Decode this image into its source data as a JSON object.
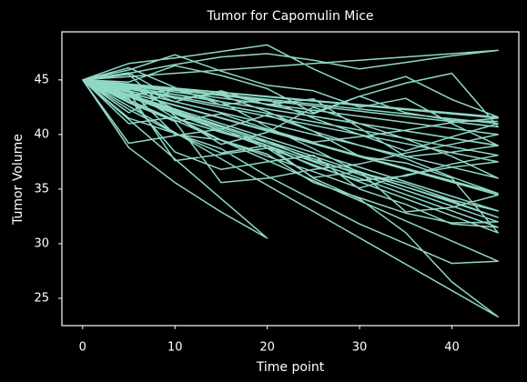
{
  "chart_data": {
    "type": "line",
    "title": "Tumor for Capomulin Mice",
    "xlabel": "Time point",
    "ylabel": "Tumor Volume",
    "x": [
      0,
      5,
      10,
      15,
      20,
      25,
      30,
      35,
      40,
      45,
      0,
      5,
      10,
      15,
      20,
      25,
      30,
      35,
      40,
      45,
      0,
      5,
      10,
      15,
      20,
      25,
      30,
      35,
      40,
      45,
      0,
      5,
      10,
      15,
      20,
      0,
      5,
      10,
      15,
      20,
      25,
      30,
      35,
      40,
      45,
      0,
      5,
      10,
      15,
      20,
      25,
      30,
      35,
      40,
      45,
      0,
      5,
      10,
      15,
      20,
      25,
      30,
      35,
      40,
      45,
      0,
      5,
      10,
      15,
      20,
      25,
      30,
      35,
      40,
      45,
      0,
      5,
      10,
      15,
      20,
      25,
      30,
      35,
      40,
      45,
      0,
      5,
      10,
      15,
      20,
      25,
      30,
      35,
      40,
      45,
      0,
      5,
      10,
      15,
      20,
      25,
      30,
      35,
      40,
      45,
      0,
      5,
      10,
      15,
      20,
      25,
      30,
      35,
      40,
      45,
      0,
      5,
      10,
      15,
      20,
      25,
      30,
      35,
      40,
      45,
      0,
      5,
      10,
      15,
      20,
      25,
      30,
      35,
      40,
      45,
      0,
      5,
      10,
      15,
      20,
      25,
      30,
      35,
      40,
      45,
      0,
      5,
      10,
      15,
      20,
      25,
      30,
      35,
      40,
      45,
      0,
      5,
      10,
      15,
      20,
      25,
      30,
      35,
      40,
      45,
      0,
      5,
      10,
      15,
      20,
      25,
      30,
      35,
      40,
      45,
      0,
      5,
      10,
      15,
      20,
      25,
      30,
      35,
      40,
      45,
      0,
      5,
      10,
      15,
      20,
      25,
      30,
      35,
      40,
      45,
      0,
      5,
      10,
      15,
      20,
      25,
      30,
      35,
      40,
      45,
      0,
      5,
      10,
      15,
      20,
      25,
      30,
      35,
      40,
      45
    ],
    "series": [
      {
        "color": "#8fd8c6",
        "values": [
          45,
          45.65,
          43.27,
          43.78,
          42.73,
          43.26,
          40.6,
          37.97,
          38.38,
          38.98,
          45,
          45.6,
          46.4,
          47.1,
          47.4,
          46.8,
          46.0,
          46.6,
          47.2,
          47.7,
          45,
          43.88,
          37.61,
          38.18,
          38.75,
          36.07,
          36.62,
          32.92,
          33.33,
          34.46,
          45,
          38.8,
          35.6,
          32.9,
          30.5,
          45,
          44.0,
          41.5,
          40.2,
          39.0,
          36.0,
          34.1,
          31.0,
          26.5,
          23.3,
          45,
          42.3,
          40.1,
          38.7,
          36.2,
          34.0,
          31.8,
          30.0,
          28.2,
          28.4,
          45,
          46.5,
          47.0,
          47.6,
          48.2,
          46.0,
          44.1,
          45.3,
          43.2,
          41.6,
          45,
          44.5,
          42.3,
          40.2,
          39.4,
          37.6,
          36.5,
          35.2,
          33.9,
          32.4,
          45,
          43.0,
          41.2,
          41.9,
          40.5,
          39.3,
          39.8,
          40.4,
          41.1,
          41.5,
          45,
          41.5,
          40.1,
          38.3,
          39.0,
          37.1,
          35.8,
          36.2,
          37.3,
          38.1,
          45,
          44.8,
          46.3,
          45.4,
          44.2,
          42.0,
          43.5,
          44.7,
          45.6,
          40.7,
          45,
          39.2,
          39.9,
          40.5,
          41.8,
          40.3,
          38.0,
          37.4,
          36.0,
          31.0,
          45,
          45.5,
          41.7,
          39.1,
          40.2,
          42.5,
          41.0,
          39.6,
          38.0,
          36.0,
          45,
          43.6,
          44.1,
          43.0,
          40.7,
          38.7,
          36.5,
          35.5,
          34.0,
          33.0,
          45,
          42.9,
          41.2,
          35.6,
          36.0,
          36.8,
          37.3,
          38.3,
          39.1,
          40.0,
          45,
          46.1,
          44.3,
          42.7,
          43.2,
          41.5,
          40.0,
          38.5,
          39.8,
          41.0,
          45,
          42.0,
          44.2,
          43.6,
          42.1,
          40.3,
          39.0,
          37.8,
          36.1,
          34.6,
          45,
          44.1,
          40.0,
          39.5,
          38.2,
          35.6,
          34.2,
          32.8,
          31.9,
          32.0,
          45,
          45.9,
          47.3,
          45.8,
          44.5,
          44.0,
          42.5,
          43.3,
          41.0,
          39.0,
          45,
          43.3,
          38.4,
          36.8,
          37.5,
          38.1,
          35.0,
          33.6,
          31.8,
          31.5,
          45,
          41.0,
          41.6,
          39.5,
          38.0,
          36.6,
          35.1,
          36.3,
          37.0,
          37.5,
          45,
          44.6,
          43.0,
          44.0,
          42.7,
          41.9,
          43.5,
          42.0,
          41.3,
          41.2
        ]
      }
    ],
    "xlim": [
      -2.25,
      47.25
    ],
    "ylim": [
      22.5,
      49.4
    ],
    "xticks": [
      0,
      10,
      20,
      30,
      40
    ],
    "yticks": [
      25,
      30,
      35,
      40,
      45
    ],
    "grid": false
  }
}
